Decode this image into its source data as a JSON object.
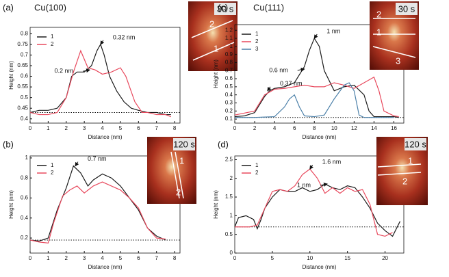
{
  "chart_data": [
    {
      "type": "line",
      "panel": "(a)",
      "sample": "Cu(100)",
      "inset_time": "30 s",
      "inset_labels": [
        "2",
        "1"
      ],
      "xlabel": "Distance (nm)",
      "ylabel": "Height (nm)",
      "xlim": [
        0,
        8.3
      ],
      "ylim": [
        0.38,
        0.83
      ],
      "xticks": [
        0,
        1,
        2,
        3,
        4,
        5,
        6,
        7,
        8
      ],
      "yticks": [
        0.4,
        0.45,
        0.5,
        0.55,
        0.6,
        0.65,
        0.7,
        0.75,
        0.8
      ],
      "baseline": 0.43,
      "legend": "upper left",
      "series": [
        {
          "name": "1",
          "color": "#1a1a1a",
          "x": [
            0,
            0.5,
            1,
            1.5,
            2,
            2.3,
            2.6,
            3,
            3.4,
            3.7,
            3.9,
            4.1,
            4.4,
            4.8,
            5.2,
            5.6,
            6,
            6.5,
            7,
            7.5,
            7.8
          ],
          "values": [
            0.43,
            0.44,
            0.44,
            0.45,
            0.5,
            0.6,
            0.62,
            0.62,
            0.65,
            0.72,
            0.75,
            0.7,
            0.6,
            0.53,
            0.48,
            0.45,
            0.44,
            0.43,
            0.43,
            0.42,
            0.42
          ]
        },
        {
          "name": "2",
          "color": "#e8485c",
          "x": [
            0,
            0.5,
            1,
            1.5,
            2,
            2.4,
            2.8,
            3.2,
            3.6,
            4,
            4.5,
            5,
            5.3,
            5.8,
            6.2,
            6.5,
            7,
            7.5,
            7.8
          ],
          "values": [
            0.43,
            0.42,
            0.42,
            0.43,
            0.5,
            0.62,
            0.72,
            0.64,
            0.63,
            0.61,
            0.62,
            0.64,
            0.6,
            0.48,
            0.43,
            0.43,
            0.42,
            0.42,
            0.41
          ]
        }
      ],
      "annotations": [
        {
          "text": "0.32 nm",
          "x": 3.9,
          "y": 0.75
        },
        {
          "text": "0.2 nm",
          "x": 3.3,
          "y": 0.63
        }
      ]
    },
    {
      "type": "line",
      "panel": "(b)",
      "sample": "",
      "inset_time": "120 s",
      "inset_labels": [
        "1",
        "2"
      ],
      "xlabel": "Distance (nm)",
      "ylabel": "Height (nm)",
      "xlim": [
        0,
        8.3
      ],
      "ylim": [
        0.05,
        1.02
      ],
      "xticks": [
        0,
        1,
        2,
        3,
        4,
        5,
        6,
        7,
        8
      ],
      "yticks": [
        0.2,
        0.4,
        0.6,
        0.8,
        1
      ],
      "baseline": 0.18,
      "legend": "upper left",
      "series": [
        {
          "name": "1",
          "color": "#1a1a1a",
          "x": [
            0,
            0.5,
            1,
            1.5,
            2,
            2.4,
            2.8,
            3.2,
            3.5,
            4,
            4.5,
            5,
            5.5,
            6,
            6.5,
            7,
            7.5
          ],
          "values": [
            0.18,
            0.17,
            0.2,
            0.48,
            0.7,
            0.92,
            0.85,
            0.72,
            0.78,
            0.84,
            0.8,
            0.72,
            0.6,
            0.48,
            0.3,
            0.22,
            0.18
          ]
        },
        {
          "name": "2",
          "color": "#e8485c",
          "x": [
            0,
            0.5,
            1,
            1.3,
            1.8,
            2.2,
            2.6,
            3,
            3.5,
            4,
            4.5,
            5,
            5.5,
            6,
            6.5,
            7,
            7.5
          ],
          "values": [
            0.18,
            0.16,
            0.15,
            0.35,
            0.62,
            0.68,
            0.72,
            0.65,
            0.72,
            0.76,
            0.72,
            0.68,
            0.6,
            0.5,
            0.3,
            0.2,
            0.19
          ]
        }
      ],
      "annotations": [
        {
          "text": "0.7 nm",
          "x": 2.5,
          "y": 0.92
        }
      ]
    },
    {
      "type": "line",
      "panel": "(c)",
      "sample": "Cu(111)",
      "inset_time": "30 s",
      "inset_labels": [
        "2",
        "1",
        "3"
      ],
      "xlabel": "Distance (nm)",
      "ylabel": "Height (nm)",
      "xlim": [
        0,
        17
      ],
      "ylim": [
        0.05,
        1.27
      ],
      "xticks": [
        0,
        2,
        4,
        6,
        8,
        10,
        12,
        14,
        16
      ],
      "yticks": [
        0.1,
        0.2,
        0.3,
        0.4,
        0.5,
        0.6,
        0.7,
        0.8,
        0.9,
        1,
        1.1,
        1.2
      ],
      "baseline": 0.12,
      "legend": "upper left",
      "series": [
        {
          "name": "1",
          "color": "#1a1a1a",
          "x": [
            0,
            1,
            2,
            3,
            3.5,
            4,
            5,
            6,
            7,
            7.5,
            8,
            8.5,
            9,
            10,
            11,
            12,
            13,
            13.5,
            14,
            15,
            16,
            16.5
          ],
          "values": [
            0.13,
            0.14,
            0.18,
            0.38,
            0.45,
            0.48,
            0.5,
            0.55,
            0.75,
            0.95,
            1.1,
            1,
            0.7,
            0.45,
            0.5,
            0.52,
            0.4,
            0.2,
            0.13,
            0.13,
            0.13,
            0.12
          ]
        },
        {
          "name": "2",
          "color": "#e8485c",
          "x": [
            0,
            2,
            3,
            4,
            5,
            6,
            7,
            8,
            9,
            10,
            11,
            12,
            13,
            14,
            14.5,
            15,
            16,
            16.5
          ],
          "values": [
            0.15,
            0.2,
            0.4,
            0.47,
            0.48,
            0.5,
            0.52,
            0.5,
            0.5,
            0.55,
            0.52,
            0.48,
            0.55,
            0.62,
            0.45,
            0.2,
            0.14,
            0.13
          ]
        },
        {
          "name": "3",
          "color": "#4a7fa8",
          "x": [
            0,
            2,
            4,
            5,
            5.5,
            6,
            6.5,
            7,
            8,
            9,
            10,
            11,
            11.5,
            12,
            12.5,
            13,
            16
          ],
          "values": [
            0.12,
            0.12,
            0.13,
            0.25,
            0.35,
            0.4,
            0.25,
            0.14,
            0.13,
            0.15,
            0.35,
            0.52,
            0.55,
            0.45,
            0.15,
            0.12,
            0.12
          ]
        }
      ],
      "annotations": [
        {
          "text": "1 nm",
          "x": 8,
          "y": 1.1
        },
        {
          "text": "0.6 nm",
          "x": 7,
          "y": 0.72
        },
        {
          "text": "0.37 nm",
          "x": 3.3,
          "y": 0.45
        }
      ]
    },
    {
      "type": "line",
      "panel": "(d)",
      "sample": "",
      "inset_time": "120 s",
      "inset_labels": [
        "1",
        "2"
      ],
      "xlabel": "Distance (nm)",
      "ylabel": "Height (nm)",
      "xlim": [
        0,
        22.5
      ],
      "ylim": [
        0,
        2.6
      ],
      "xticks": [
        0,
        5,
        10,
        15,
        20
      ],
      "yticks": [
        0,
        0.5,
        1,
        1.5,
        2,
        2.5
      ],
      "baseline": 0.7,
      "legend": "upper left",
      "series": [
        {
          "name": "1",
          "color": "#1a1a1a",
          "x": [
            0,
            0.5,
            1.5,
            2.5,
            3,
            3.5,
            4,
            5,
            6,
            7,
            8,
            9,
            10,
            11,
            12,
            13,
            14,
            15,
            16,
            17,
            18,
            19,
            20,
            21,
            22
          ],
          "values": [
            0.7,
            0.95,
            1,
            0.9,
            0.65,
            0.9,
            1.2,
            1.5,
            1.7,
            1.65,
            1.65,
            1.75,
            1.65,
            1.7,
            1.85,
            1.75,
            1.7,
            1.8,
            1.75,
            1.5,
            1.2,
            0.8,
            0.6,
            0.45,
            0.85
          ]
        },
        {
          "name": "2",
          "color": "#e8485c",
          "x": [
            0,
            2,
            3,
            4,
            5,
            6,
            7,
            8,
            9,
            10,
            11,
            12,
            13,
            14,
            15,
            16,
            17,
            18,
            19,
            20,
            21
          ],
          "values": [
            0.7,
            0.7,
            0.75,
            1.2,
            1.65,
            1.7,
            1.65,
            1.8,
            2.1,
            2.25,
            2,
            1.6,
            1.75,
            1.6,
            1.75,
            1.65,
            1.7,
            1.3,
            0.5,
            0.45,
            0.55
          ]
        }
      ],
      "annotations": [
        {
          "text": "1.6 nm",
          "x": 10,
          "y": 2.25
        },
        {
          "text": "1 nm",
          "x": 12.3,
          "y": 1.85
        }
      ]
    }
  ]
}
